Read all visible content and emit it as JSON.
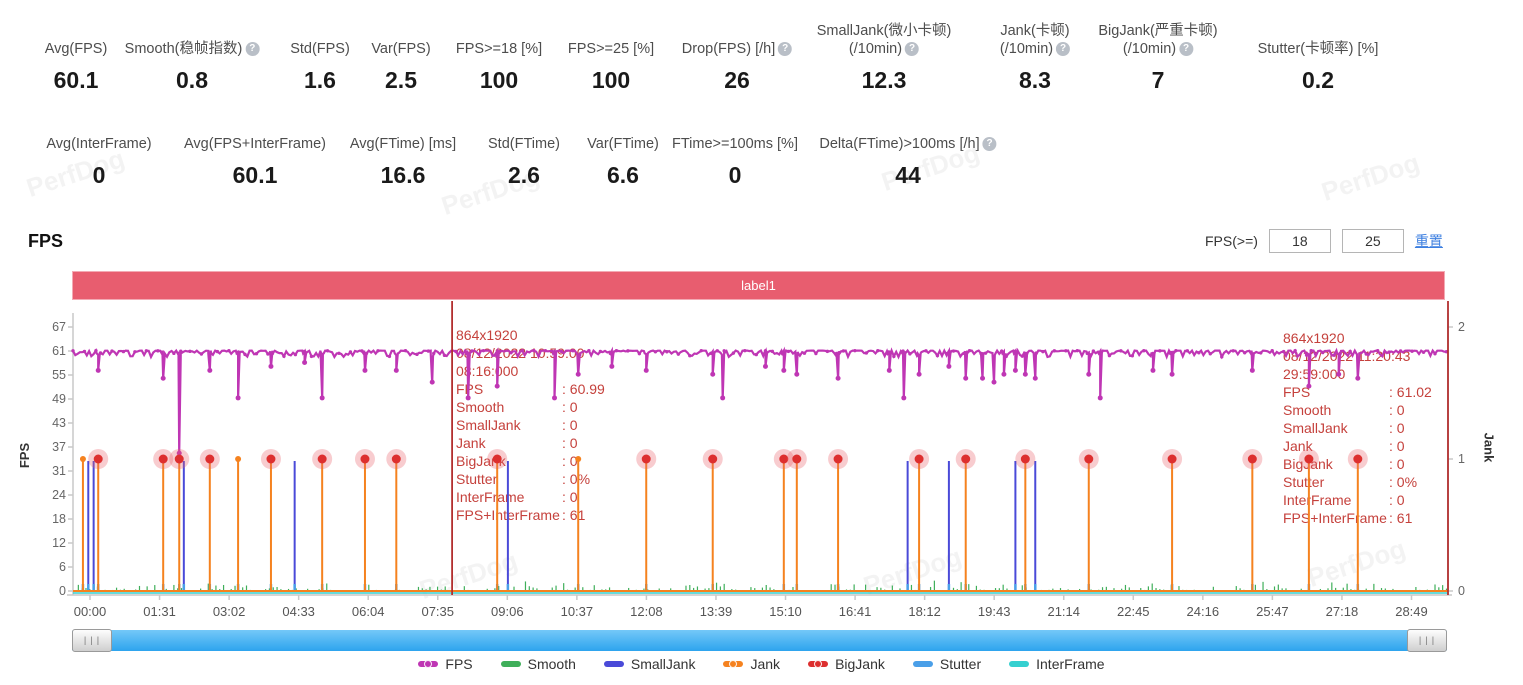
{
  "app": {
    "watermark_text": "PerfDog"
  },
  "icons": {
    "help": "?",
    "grip": "|||"
  },
  "metrics_row1": [
    {
      "label": "Avg(FPS)",
      "value": "60.1"
    },
    {
      "label": "Smooth(稳帧指数)",
      "help": true,
      "value": "0.8"
    },
    {
      "label": "Std(FPS)",
      "value": "1.6"
    },
    {
      "label": "Var(FPS)",
      "value": "2.5"
    },
    {
      "label": "FPS>=18 [%]",
      "value": "100"
    },
    {
      "label": "FPS>=25 [%]",
      "value": "100"
    },
    {
      "label": "Drop(FPS) [/h]",
      "help": true,
      "value": "26"
    },
    {
      "label": "SmallJank(微小卡顿)",
      "label2": "(/10min)",
      "help": true,
      "value": "12.3"
    },
    {
      "label": "Jank(卡顿)",
      "label2": "(/10min)",
      "help": true,
      "value": "8.3"
    },
    {
      "label": "BigJank(严重卡顿)",
      "label2": "(/10min)",
      "help": true,
      "value": "7"
    },
    {
      "label": "Stutter(卡顿率) [%]",
      "value": "0.2"
    }
  ],
  "metrics_row2": [
    {
      "label": "Avg(InterFrame)",
      "value": "0"
    },
    {
      "label": "Avg(FPS+InterFrame)",
      "value": "60.1"
    },
    {
      "label": "Avg(FTime) [ms]",
      "value": "16.6"
    },
    {
      "label": "Std(FTime)",
      "value": "2.6"
    },
    {
      "label": "Var(FTime)",
      "value": "6.6"
    },
    {
      "label": "FTime>=100ms [%]",
      "value": "0"
    },
    {
      "label": "Delta(FTime)>100ms [/h]",
      "help": true,
      "value": "44"
    }
  ],
  "fps_section": {
    "title": "FPS",
    "filter_label": "FPS(>=)",
    "threshold_low": "18",
    "threshold_high": "25",
    "reset_label": "重置",
    "banner_label": "label1"
  },
  "chart_data": {
    "type": "line",
    "title": "label1",
    "x_axis": {
      "tick_labels": [
        "00:00",
        "01:31",
        "03:02",
        "04:33",
        "06:04",
        "07:35",
        "09:06",
        "10:37",
        "12:08",
        "13:39",
        "15:10",
        "16:41",
        "18:12",
        "19:43",
        "21:14",
        "22:45",
        "24:16",
        "25:47",
        "27:18",
        "28:49"
      ],
      "tick_interval_seconds": 91,
      "duration_seconds": 1799
    },
    "y_axis_left": {
      "label": "FPS",
      "ticks": [
        67,
        61,
        55,
        49,
        43,
        37,
        31,
        24,
        18,
        12,
        6,
        0
      ],
      "max": 67
    },
    "y_axis_right": {
      "label": "Jank",
      "ticks": [
        2,
        1,
        0
      ],
      "max": 2
    },
    "fps_baseline": 61,
    "fps_dips": [
      [
        33,
        56
      ],
      [
        118,
        54
      ],
      [
        139,
        35
      ],
      [
        179,
        56
      ],
      [
        216,
        49
      ],
      [
        259,
        57
      ],
      [
        303,
        58
      ],
      [
        326,
        49
      ],
      [
        382,
        56
      ],
      [
        423,
        56
      ],
      [
        470,
        53
      ],
      [
        517,
        49
      ],
      [
        555,
        52
      ],
      [
        630,
        49
      ],
      [
        661,
        55
      ],
      [
        705,
        57
      ],
      [
        750,
        56
      ],
      [
        837,
        55
      ],
      [
        850,
        49
      ],
      [
        906,
        57
      ],
      [
        930,
        56
      ],
      [
        947,
        55
      ],
      [
        1001,
        54
      ],
      [
        1068,
        56
      ],
      [
        1087,
        49
      ],
      [
        1107,
        55
      ],
      [
        1146,
        57
      ],
      [
        1168,
        54
      ],
      [
        1190,
        54
      ],
      [
        1205,
        53
      ],
      [
        1218,
        55
      ],
      [
        1233,
        56
      ],
      [
        1246,
        55
      ],
      [
        1259,
        54
      ],
      [
        1329,
        55
      ],
      [
        1344,
        49
      ],
      [
        1413,
        56
      ],
      [
        1438,
        55
      ],
      [
        1543,
        56
      ],
      [
        1617,
        52
      ],
      [
        1656,
        55
      ],
      [
        1681,
        54
      ]
    ],
    "jank_event_value": 1,
    "bigjank_event_times_s": [
      33,
      118,
      139,
      179,
      259,
      326,
      382,
      423,
      555,
      750,
      837,
      930,
      947,
      1001,
      1107,
      1168,
      1246,
      1329,
      1438,
      1543,
      1617,
      1681
    ],
    "jank_event_times_s": [
      13,
      216,
      661
    ],
    "smalljank_event_times_s": [
      20,
      27,
      145,
      290,
      569,
      1092,
      1146,
      1233,
      1259
    ],
    "markers": [
      {
        "time_s": 496,
        "tooltip": "left"
      },
      {
        "time_s": 1799,
        "tooltip": "right"
      }
    ],
    "colors": {
      "fps": "#bf36b4",
      "smooth": "#3faf5a",
      "smalljank": "#4a4ad8",
      "jank": "#f5821f",
      "bigjank": "#dd2f2f",
      "bigjank_halo": "rgba(232,96,106,0.32)",
      "stutter": "#4a9fe8",
      "interframe": "#35d0d0",
      "marker_line": "#b22f2f",
      "axis": "#c9c9c9",
      "banner": "#e85d6f"
    }
  },
  "tooltips": {
    "left": {
      "resolution": "864x1920",
      "datetime": "08/12/2022 10:59:00",
      "elapsed": "08:16:000",
      "rows": [
        [
          "FPS",
          "60.99"
        ],
        [
          "Smooth",
          "0"
        ],
        [
          "SmallJank",
          "0"
        ],
        [
          "Jank",
          "0"
        ],
        [
          "BigJank",
          "0"
        ],
        [
          "Stutter",
          "0%"
        ],
        [
          "InterFrame",
          "0"
        ],
        [
          "FPS+InterFrame",
          "61"
        ]
      ]
    },
    "right": {
      "resolution": "864x1920",
      "datetime": "08/12/2022 11:20:43",
      "elapsed": "29:59:000",
      "rows": [
        [
          "FPS",
          "61.02"
        ],
        [
          "Smooth",
          "0"
        ],
        [
          "SmallJank",
          "0"
        ],
        [
          "Jank",
          "0"
        ],
        [
          "BigJank",
          "0"
        ],
        [
          "Stutter",
          "0%"
        ],
        [
          "InterFrame",
          "0"
        ],
        [
          "FPS+InterFrame",
          "61"
        ]
      ]
    }
  },
  "legend": [
    {
      "label": "FPS",
      "color": "#bf36b4",
      "dot": true
    },
    {
      "label": "Smooth",
      "color": "#3faf5a",
      "dot": false
    },
    {
      "label": "SmallJank",
      "color": "#4a4ad8",
      "dot": false
    },
    {
      "label": "Jank",
      "color": "#f5821f",
      "dot": true
    },
    {
      "label": "BigJank",
      "color": "#dd2f2f",
      "dot": true
    },
    {
      "label": "Stutter",
      "color": "#4a9fe8",
      "dot": false
    },
    {
      "label": "InterFrame",
      "color": "#35d0d0",
      "dot": false
    }
  ]
}
